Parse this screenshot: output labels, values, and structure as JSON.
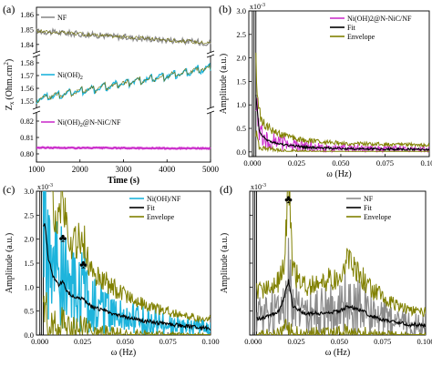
{
  "figure": {
    "colors": {
      "nf_line": "#8c8c8c",
      "nioh2_line": "#1eb4dc",
      "nnic_line": "#cc33cc",
      "fit": "#000000",
      "envelope": "#808000",
      "marker": "#000000"
    }
  },
  "chart_data": [
    {
      "panel": "(a)",
      "type": "line",
      "xlabel": "Time (s)",
      "ylabel": "Z",
      "ylabel_sub": "x",
      "ylabel_unit": "(Ohm.cm",
      "ylabel_unit_sup": "2",
      "ylabel_close": ")",
      "xlim": [
        1000,
        5000
      ],
      "x_ticks": [
        1000,
        2000,
        3000,
        4000,
        5000
      ],
      "broken_axis": true,
      "segments": [
        {
          "ylim": [
            1.835,
            1.865
          ],
          "y_ticks": [
            "1.84",
            "1.85",
            "1.86"
          ],
          "y_tick_values": [
            1.84,
            1.85,
            1.86
          ]
        },
        {
          "ylim": [
            1.545,
            1.585
          ],
          "y_ticks": [
            "1.55",
            "1.56",
            "1.57",
            "1.58"
          ],
          "y_tick_values": [
            1.55,
            1.56,
            1.57,
            1.58
          ]
        },
        {
          "ylim": [
            0.795,
            0.825
          ],
          "y_ticks": [
            "0.80",
            "0.81",
            "0.82"
          ],
          "y_tick_values": [
            0.8,
            0.81,
            0.82
          ]
        }
      ],
      "series": [
        {
          "name": "NF",
          "segment": 0,
          "x": [
            1000,
            1500,
            2000,
            2500,
            3000,
            3500,
            4000,
            4500,
            5000
          ],
          "values": [
            1.849,
            1.848,
            1.847,
            1.846,
            1.845,
            1.844,
            1.843,
            1.842,
            1.841
          ]
        },
        {
          "name": "Ni(OH)",
          "name_sub": "2",
          "segment": 1,
          "x": [
            1000,
            1500,
            2000,
            2500,
            3000,
            3500,
            4000,
            4500,
            5000
          ],
          "values": [
            1.552,
            1.555,
            1.558,
            1.561,
            1.564,
            1.567,
            1.57,
            1.573,
            1.576
          ]
        },
        {
          "name": "Ni(OH)",
          "name_sub": "2",
          "name_rest": "@N-NiC/NF",
          "segment": 2,
          "x": [
            1000,
            1500,
            2000,
            2500,
            3000,
            3500,
            4000,
            4500,
            5000
          ],
          "values": [
            0.8038,
            0.8037,
            0.8036,
            0.8036,
            0.8035,
            0.8035,
            0.8034,
            0.8034,
            0.8033
          ]
        }
      ]
    },
    {
      "panel": "(b)",
      "type": "line",
      "xlabel": "ω (Hz)",
      "ylabel": "Amplitude (a.u.)",
      "multiplier": "x10",
      "multiplier_exp": "-3",
      "xlim": [
        -0.002,
        0.1
      ],
      "ylim": [
        -0.1,
        3.0
      ],
      "x_ticks": [
        "0.000",
        "0.025",
        "0.050",
        "0.075",
        "0.100"
      ],
      "x_tick_values": [
        0,
        0.025,
        0.05,
        0.075,
        0.1
      ],
      "y_ticks": [
        "0.0",
        "0.5",
        "1.0",
        "1.5",
        "2.0",
        "2.5",
        "3.0"
      ],
      "y_tick_values": [
        0,
        0.5,
        1.0,
        1.5,
        2.0,
        2.5,
        3.0
      ],
      "legend": [
        "Ni(OH)2@N-NiC/NF",
        "Fit",
        "Envelope"
      ],
      "series": [
        {
          "name": "Ni(OH)2@N-NiC/NF",
          "x": [
            0.001,
            0.002,
            0.003,
            0.005,
            0.008,
            0.012,
            0.016,
            0.02,
            0.025,
            0.03,
            0.04,
            0.05,
            0.06,
            0.07,
            0.08,
            0.09,
            0.1
          ],
          "values": [
            3.0,
            1.0,
            0.55,
            0.35,
            0.28,
            0.22,
            0.18,
            0.16,
            0.13,
            0.11,
            0.09,
            0.08,
            0.07,
            0.07,
            0.06,
            0.06,
            0.05
          ]
        },
        {
          "name": "Fit",
          "x": [
            0.002,
            0.004,
            0.008,
            0.012,
            0.02,
            0.03,
            0.05,
            0.07,
            0.1
          ],
          "values": [
            1.2,
            0.4,
            0.25,
            0.2,
            0.14,
            0.1,
            0.07,
            0.06,
            0.05
          ]
        }
      ]
    },
    {
      "panel": "(c)",
      "type": "line",
      "xlabel": "ω (Hz)",
      "ylabel": "Amplitude (a.u.)",
      "multiplier": "x10",
      "multiplier_exp": "-3",
      "xlim": [
        -0.002,
        0.1
      ],
      "ylim": [
        0,
        3.0
      ],
      "x_ticks": [
        "0.000",
        "0.025",
        "0.050",
        "0.075",
        "0.100"
      ],
      "x_tick_values": [
        0,
        0.025,
        0.05,
        0.075,
        0.1
      ],
      "y_ticks": [
        "0.0",
        "0.5",
        "1.0",
        "1.5",
        "2.0",
        "2.5",
        "3.0"
      ],
      "y_tick_values": [
        0,
        0.5,
        1.0,
        1.5,
        2.0,
        2.5,
        3.0
      ],
      "legend": [
        "Ni(OH)/NF",
        "Fit",
        "Envelope"
      ],
      "markers": [
        {
          "symbol": "♣",
          "x": 0.0135,
          "y": 1.95
        },
        {
          "symbol": "♣",
          "x": 0.0255,
          "y": 1.4
        }
      ],
      "series": [
        {
          "name": "Ni(OH)/NF",
          "x": [
            0.003,
            0.005,
            0.008,
            0.011,
            0.0135,
            0.016,
            0.02,
            0.025,
            0.03,
            0.04,
            0.05,
            0.06,
            0.07,
            0.08,
            0.09,
            0.1
          ],
          "values": [
            2.4,
            1.7,
            1.3,
            1.2,
            1.5,
            1.0,
            0.9,
            1.0,
            0.65,
            0.5,
            0.38,
            0.3,
            0.24,
            0.2,
            0.16,
            0.14
          ]
        },
        {
          "name": "Fit",
          "x": [
            0.003,
            0.005,
            0.008,
            0.011,
            0.0135,
            0.016,
            0.02,
            0.025,
            0.03,
            0.04,
            0.05,
            0.06,
            0.07,
            0.08,
            0.09,
            0.1
          ],
          "values": [
            2.3,
            1.6,
            1.2,
            1.05,
            1.1,
            0.9,
            0.8,
            0.75,
            0.6,
            0.48,
            0.38,
            0.3,
            0.25,
            0.21,
            0.17,
            0.14
          ]
        }
      ]
    },
    {
      "panel": "(d)",
      "type": "line",
      "xlabel": "ω (Hz)",
      "ylabel": "Amplitude (a.u.)",
      "multiplier": "x10",
      "multiplier_exp": "-3",
      "xlim": [
        -0.002,
        0.1
      ],
      "ylim": [
        0,
        3.0
      ],
      "x_ticks": [
        "0.000",
        "0.025",
        "0.050",
        "0.075",
        "0.100"
      ],
      "x_tick_values": [
        0,
        0.025,
        0.05,
        0.075,
        0.1
      ],
      "y_ticks": [
        "0.0",
        "0.5",
        "1.0",
        "1.5",
        "2.0",
        "2.5",
        "3.0"
      ],
      "y_tick_values": [
        0,
        0.5,
        1.0,
        1.5,
        2.0,
        2.5,
        3.0
      ],
      "legend": [
        "NF",
        "Fit",
        "Envelope"
      ],
      "markers": [
        {
          "symbol": "♣",
          "x": 0.0205,
          "y": 2.75
        }
      ],
      "series": [
        {
          "name": "NF",
          "x": [
            0.005,
            0.01,
            0.015,
            0.018,
            0.0205,
            0.023,
            0.03,
            0.04,
            0.05,
            0.055,
            0.06,
            0.07,
            0.08,
            0.09,
            0.1
          ],
          "values": [
            0.4,
            0.45,
            0.5,
            0.7,
            1.5,
            0.6,
            0.45,
            0.5,
            0.55,
            0.7,
            0.6,
            0.4,
            0.3,
            0.22,
            0.2
          ]
        },
        {
          "name": "Fit",
          "x": [
            0.005,
            0.01,
            0.015,
            0.018,
            0.0205,
            0.023,
            0.03,
            0.04,
            0.05,
            0.055,
            0.06,
            0.07,
            0.08,
            0.09,
            0.1
          ],
          "values": [
            0.35,
            0.4,
            0.5,
            0.8,
            1.15,
            0.6,
            0.45,
            0.45,
            0.5,
            0.6,
            0.55,
            0.38,
            0.28,
            0.22,
            0.2
          ]
        }
      ]
    }
  ]
}
